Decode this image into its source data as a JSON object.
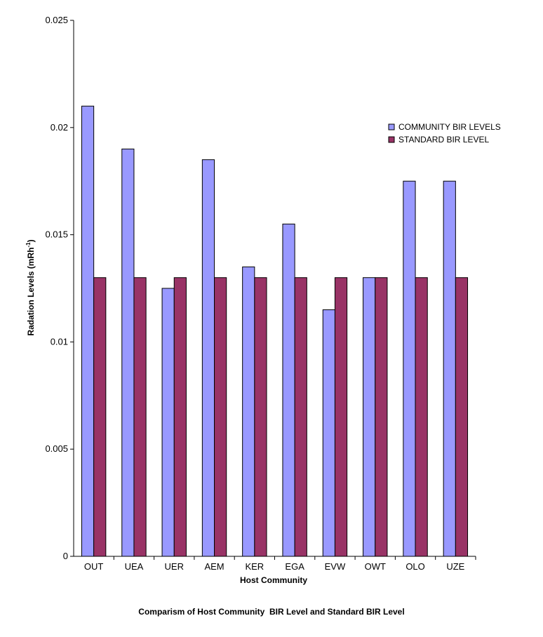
{
  "chart_data": {
    "type": "bar",
    "caption": "Comparism of Host Community  BIR Level and Standard BIR Level",
    "xlabel": "Host Community",
    "ylabel": "Radation Levels (mRh",
    "ylabel_superscript": "-1",
    "ylabel_suffix": ")",
    "ylim": [
      0,
      0.025
    ],
    "yticks": [
      "0",
      "0.005",
      "0.01",
      "0.015",
      "0.02",
      "0.025"
    ],
    "grid": false,
    "legend_position": "right",
    "categories": [
      "OUT",
      "UEA",
      "UER",
      "AEM",
      "KER",
      "EGA",
      "EVW",
      "OWT",
      "OLO",
      "UZE"
    ],
    "series": [
      {
        "name": "COMMUNITY BIR LEVELS",
        "color": "#9999ff",
        "values": [
          0.021,
          0.019,
          0.0125,
          0.0185,
          0.0135,
          0.0155,
          0.0115,
          0.013,
          0.0175,
          0.0175
        ]
      },
      {
        "name": "STANDARD BIR LEVEL",
        "color": "#993366",
        "values": [
          0.013,
          0.013,
          0.013,
          0.013,
          0.013,
          0.013,
          0.013,
          0.013,
          0.013,
          0.013
        ]
      }
    ]
  }
}
